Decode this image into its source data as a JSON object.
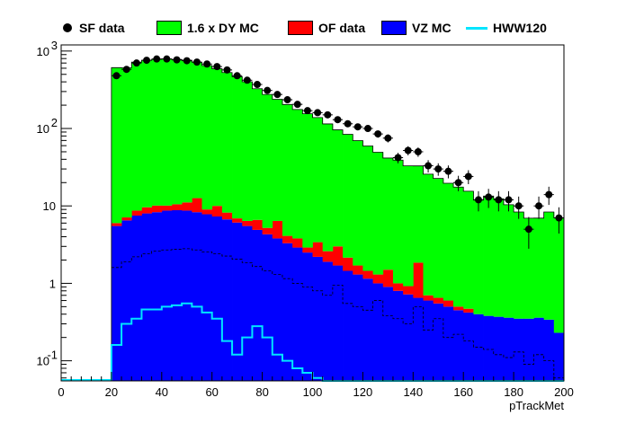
{
  "chart_data": {
    "type": "bar",
    "xlabel": "pTrackMet",
    "ylabel": "",
    "xlim": [
      0,
      200
    ],
    "ylim": [
      0.055,
      1200
    ],
    "ylog": true,
    "legend_position": "top",
    "x_ticks": [
      "0",
      "20",
      "40",
      "60",
      "80",
      "100",
      "120",
      "140",
      "160",
      "180",
      "200"
    ],
    "y_ticks": [
      {
        "value": 0.1,
        "base": "10",
        "exp": "-1"
      },
      {
        "value": 1,
        "base": "1",
        "exp": ""
      },
      {
        "value": 10,
        "base": "10",
        "exp": ""
      },
      {
        "value": 100,
        "base": "10",
        "exp": "2"
      },
      {
        "value": 1000,
        "base": "10",
        "exp": "3"
      }
    ],
    "bin_width": 4,
    "bin_starts": [
      20,
      24,
      28,
      32,
      36,
      40,
      44,
      48,
      52,
      56,
      60,
      64,
      68,
      72,
      76,
      80,
      84,
      88,
      92,
      96,
      100,
      104,
      108,
      112,
      116,
      120,
      124,
      128,
      132,
      136,
      140,
      144,
      148,
      152,
      156,
      160,
      164,
      168,
      172,
      176,
      180,
      184,
      188,
      192,
      196
    ],
    "legend": [
      {
        "label": "SF data",
        "kind": "marker",
        "color": "#000000"
      },
      {
        "label": "1.6 x DY MC",
        "kind": "fill",
        "color": "#00ff00"
      },
      {
        "label": "OF data",
        "kind": "fill",
        "color": "#ff0000"
      },
      {
        "label": "VZ MC",
        "kind": "fill",
        "color": "#0000ff"
      },
      {
        "label": "HWW120",
        "kind": "line",
        "color": "#00e5ff"
      }
    ],
    "stack": [
      {
        "name": "VZ MC",
        "color": "#0000ff",
        "values": [
          5.5,
          6.5,
          7.5,
          8,
          8.3,
          8.7,
          8.8,
          8.7,
          8.3,
          7.8,
          7.3,
          6.7,
          6.1,
          5.5,
          4.9,
          4.3,
          3.8,
          3.3,
          2.9,
          2.5,
          2.2,
          1.9,
          1.7,
          1.45,
          1.3,
          1.15,
          1.0,
          0.9,
          0.8,
          0.72,
          0.65,
          0.6,
          0.55,
          0.5,
          0.45,
          0.42,
          0.4,
          0.38,
          0.37,
          0.36,
          0.35,
          0.35,
          0.36,
          0.34,
          0.23
        ]
      },
      {
        "name": "OF data",
        "color": "#ff0000",
        "values": [
          0.5,
          0.6,
          1.2,
          1.6,
          1.8,
          1.4,
          1.7,
          2.4,
          4.3,
          1.2,
          2.7,
          1.5,
          0.8,
          0.9,
          1.7,
          0.9,
          2.6,
          0.8,
          0.9,
          0.4,
          1.2,
          0.7,
          1.3,
          0.7,
          0.4,
          0.3,
          0.3,
          0.6,
          0.2,
          0.2,
          1.2,
          0.1,
          0.1,
          0.1,
          0.05,
          0.05,
          0,
          0,
          0,
          0,
          0,
          0,
          0,
          0,
          0
        ]
      },
      {
        "name": "1.6 x DY MC",
        "color": "#00ff00",
        "values": [
          604,
          600,
          710,
          750,
          770,
          780,
          770,
          750,
          705,
          640,
          580,
          520,
          460,
          395,
          320,
          270,
          232,
          200,
          172,
          152,
          135,
          112,
          93,
          82,
          68,
          58,
          48,
          40,
          38,
          32,
          31,
          25,
          22,
          19,
          17,
          15,
          11.5,
          13,
          12,
          10,
          8,
          6.6,
          6.6,
          8,
          6.8
        ]
      }
    ],
    "vz_line": [
      1.6,
      1.9,
      2.2,
      2.4,
      2.6,
      2.7,
      2.75,
      2.8,
      2.7,
      2.55,
      2.4,
      2.25,
      2.05,
      1.85,
      1.65,
      1.45,
      1.3,
      1.15,
      1.0,
      0.9,
      0.8,
      0.7,
      0.95,
      0.55,
      0.5,
      0.45,
      0.6,
      0.38,
      0.35,
      0.3,
      0.5,
      0.25,
      0.35,
      0.2,
      0.22,
      0.18,
      0.15,
      0.14,
      0.12,
      0.11,
      0.13,
      0.09,
      0.12,
      0.1,
      0.06
    ],
    "hww120": [
      0.16,
      0.3,
      0.35,
      0.46,
      0.46,
      0.5,
      0.52,
      0.55,
      0.5,
      0.42,
      0.35,
      0.18,
      0.12,
      0.2,
      0.28,
      0.2,
      0.12,
      0.1,
      0.08,
      0.07,
      0.06,
      0.055,
      0.055,
      0.055,
      0.055,
      0.055,
      0.055,
      0.055,
      0.055,
      0.055,
      0.055,
      0.055,
      0.055,
      0.055,
      0.055,
      0.055,
      0.055,
      0.055,
      0.055,
      0.055,
      0.055,
      0.055,
      0.055,
      0.055,
      0.055
    ],
    "sf_data": {
      "x": [
        22,
        26,
        30,
        34,
        38,
        42,
        46,
        50,
        54,
        58,
        62,
        66,
        70,
        74,
        78,
        82,
        86,
        90,
        94,
        98,
        102,
        106,
        110,
        114,
        118,
        122,
        126,
        130,
        134,
        138,
        142,
        146,
        150,
        154,
        158,
        162,
        166,
        170,
        174,
        178,
        182,
        186,
        190,
        194,
        198
      ],
      "y": [
        480,
        580,
        700,
        760,
        790,
        790,
        770,
        750,
        720,
        680,
        630,
        570,
        480,
        420,
        370,
        310,
        275,
        235,
        205,
        170,
        160,
        150,
        130,
        115,
        105,
        100,
        85,
        75,
        42,
        52,
        50,
        33,
        30,
        28,
        20,
        24,
        12,
        13,
        12,
        12,
        10,
        5,
        10,
        14,
        7
      ],
      "err": [
        22,
        24,
        27,
        28,
        28,
        28,
        28,
        27,
        27,
        26,
        25,
        24,
        22,
        20,
        19,
        18,
        17,
        15,
        14,
        13,
        13,
        12,
        11,
        11,
        10,
        10,
        9,
        9,
        6.5,
        7,
        7,
        6,
        5.5,
        5.3,
        4.5,
        4.9,
        3.5,
        3.6,
        3.5,
        3.5,
        3.2,
        2.2,
        3.2,
        3.7,
        2.6
      ]
    }
  }
}
